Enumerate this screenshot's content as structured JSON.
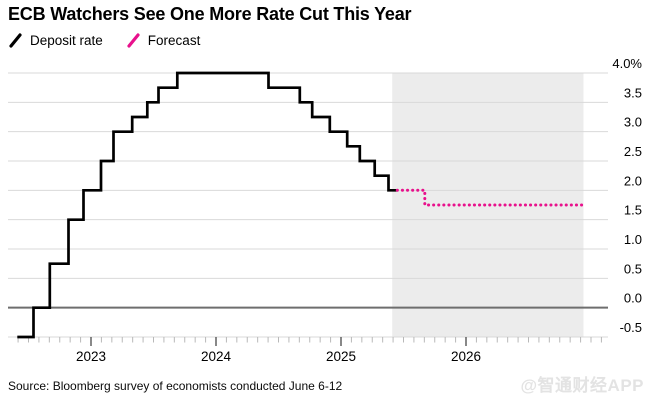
{
  "title": "ECB Watchers See One More Rate Cut This Year",
  "legend": [
    {
      "label": "Deposit rate",
      "color": "#000000",
      "style": "solid"
    },
    {
      "label": "Forecast",
      "color": "#e8118c",
      "style": "dotted"
    }
  ],
  "source": "Source: Bloomberg survey of economists conducted June 6-12",
  "watermark": "@智通财经APP",
  "chart_data": {
    "type": "line",
    "step": true,
    "title": "ECB Watchers See One More Rate Cut This Year",
    "xlabel": "",
    "ylabel": "",
    "unit": "%",
    "ylim": [
      -0.5,
      4.0
    ],
    "xlim": [
      2022.33,
      2027.15
    ],
    "grid": "horizontal",
    "legend_position": "top-left",
    "y_axis_side": "right",
    "y_ticks": [
      {
        "v": 4.0,
        "label": "4.0%"
      },
      {
        "v": 3.5,
        "label": "3.5"
      },
      {
        "v": 3.0,
        "label": "3.0"
      },
      {
        "v": 2.5,
        "label": "2.5"
      },
      {
        "v": 2.0,
        "label": "2.0"
      },
      {
        "v": 1.5,
        "label": "1.5"
      },
      {
        "v": 1.0,
        "label": "1.0"
      },
      {
        "v": 0.5,
        "label": "0.5"
      },
      {
        "v": 0.0,
        "label": "0.0"
      },
      {
        "v": -0.5,
        "label": "-0.5"
      }
    ],
    "x_ticks": [
      {
        "v": 2023,
        "label": "2023"
      },
      {
        "v": 2024,
        "label": "2024"
      },
      {
        "v": 2025,
        "label": "2025"
      },
      {
        "v": 2026,
        "label": "2026"
      }
    ],
    "x_minor_tick_interval": 0.08333,
    "zero_line": 0.0,
    "forecast_band": {
      "x_start": 2025.41,
      "x_end": 2026.94,
      "color": "#ececec"
    },
    "colors": {
      "gridline": "#d9d9d9",
      "zero_line": "#6e6e6e",
      "minor_tick": "#b8b8b8",
      "major_tick": "#3a3a3a"
    },
    "series": [
      {
        "name": "Deposit rate",
        "color": "#000000",
        "style": "solid",
        "points": [
          [
            2022.41,
            -0.5
          ],
          [
            2022.54,
            0.0
          ],
          [
            2022.67,
            0.75
          ],
          [
            2022.82,
            1.5
          ],
          [
            2022.94,
            2.0
          ],
          [
            2023.08,
            2.5
          ],
          [
            2023.18,
            3.0
          ],
          [
            2023.33,
            3.25
          ],
          [
            2023.45,
            3.5
          ],
          [
            2023.54,
            3.75
          ],
          [
            2023.69,
            4.0
          ],
          [
            2024.42,
            3.75
          ],
          [
            2024.67,
            3.5
          ],
          [
            2024.77,
            3.25
          ],
          [
            2024.91,
            3.0
          ],
          [
            2025.05,
            2.75
          ],
          [
            2025.15,
            2.5
          ],
          [
            2025.27,
            2.25
          ],
          [
            2025.38,
            2.0
          ],
          [
            2025.45,
            2.0
          ]
        ]
      },
      {
        "name": "Forecast",
        "color": "#e8118c",
        "style": "dotted",
        "points": [
          [
            2025.45,
            2.0
          ],
          [
            2025.67,
            1.75
          ],
          [
            2026.94,
            1.75
          ]
        ]
      }
    ]
  }
}
